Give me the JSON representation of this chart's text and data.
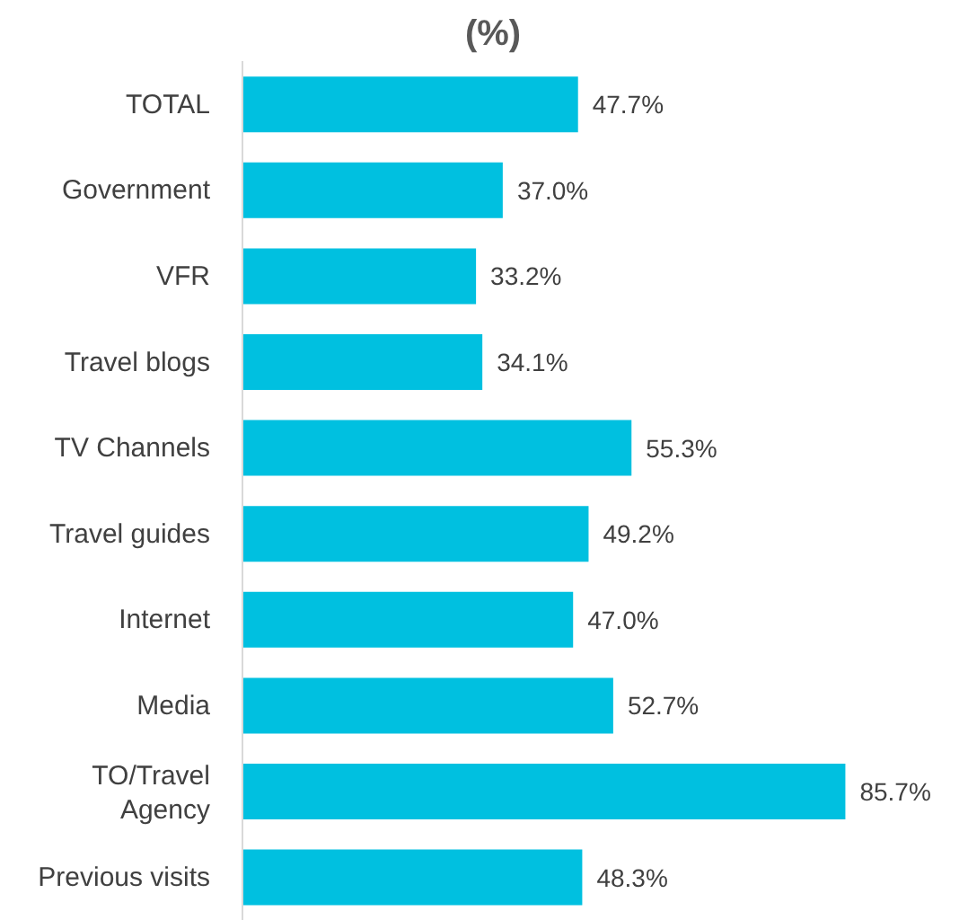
{
  "chart_data": {
    "type": "bar",
    "orientation": "horizontal",
    "title": "(%)",
    "categories": [
      "TOTAL",
      "Government",
      "VFR",
      "Travel blogs",
      "TV Channels",
      "Travel guides",
      "Internet",
      "Media",
      "TO/Travel Agency",
      "Previous visits"
    ],
    "values": [
      47.7,
      37.0,
      33.2,
      34.1,
      55.3,
      49.2,
      47.0,
      52.7,
      85.7,
      48.3
    ],
    "value_labels": [
      "47.7%",
      "37.0%",
      "33.2%",
      "34.1%",
      "55.3%",
      "49.2%",
      "47.0%",
      "52.7%",
      "85.7%",
      "48.3%"
    ],
    "colors": [
      "#00c0e0",
      "#00c0e0",
      "#00c0e0",
      "#00c0e0",
      "#00c0e0",
      "#00c0e0",
      "#00c0e0",
      "#00c0e0",
      "#00c0e0",
      "#00c0e0"
    ],
    "tick_labels": "y"
  }
}
